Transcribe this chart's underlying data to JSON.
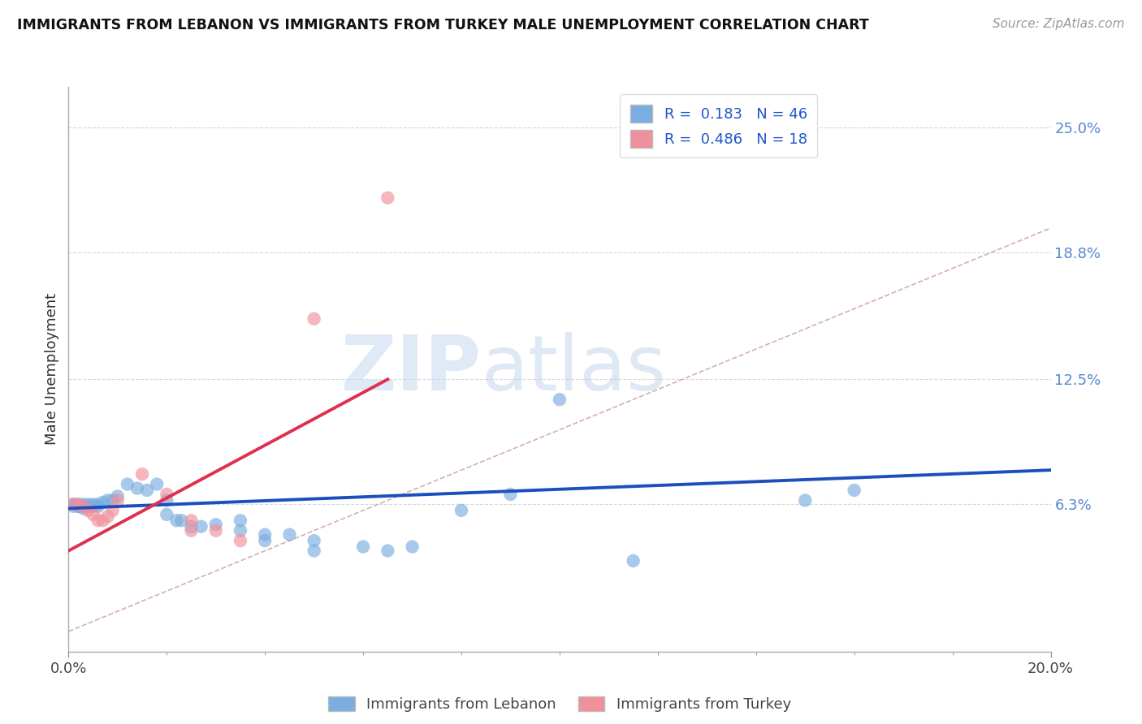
{
  "title": "IMMIGRANTS FROM LEBANON VS IMMIGRANTS FROM TURKEY MALE UNEMPLOYMENT CORRELATION CHART",
  "source": "Source: ZipAtlas.com",
  "ylabel": "Male Unemployment",
  "xlim": [
    0.0,
    0.2
  ],
  "ylim": [
    -0.01,
    0.27
  ],
  "yticks": [
    0.063,
    0.125,
    0.188,
    0.25
  ],
  "ytick_labels": [
    "6.3%",
    "12.5%",
    "18.8%",
    "25.0%"
  ],
  "xticks": [
    0.0,
    0.2
  ],
  "xtick_labels": [
    "0.0%",
    "20.0%"
  ],
  "legend1_entries": [
    {
      "label": "R =  0.183   N = 46",
      "color": "#8ab4e8"
    },
    {
      "label": "R =  0.486   N = 18",
      "color": "#f4a0b0"
    }
  ],
  "background_color": "#ffffff",
  "grid_color": "#d8d8d8",
  "watermark_zip": "ZIP",
  "watermark_atlas": "atlas",
  "lebanon_color": "#7aade0",
  "turkey_color": "#f0909c",
  "lebanon_line_color": "#1a4fbd",
  "turkey_line_color": "#e03050",
  "diagonal_color": "#d4b0b0",
  "lebanon_scatter": [
    [
      0.001,
      0.063
    ],
    [
      0.001,
      0.063
    ],
    [
      0.001,
      0.062
    ],
    [
      0.002,
      0.063
    ],
    [
      0.002,
      0.062
    ],
    [
      0.002,
      0.062
    ],
    [
      0.003,
      0.063
    ],
    [
      0.003,
      0.062
    ],
    [
      0.003,
      0.061
    ],
    [
      0.004,
      0.063
    ],
    [
      0.004,
      0.062
    ],
    [
      0.005,
      0.063
    ],
    [
      0.005,
      0.062
    ],
    [
      0.006,
      0.063
    ],
    [
      0.006,
      0.062
    ],
    [
      0.007,
      0.064
    ],
    [
      0.008,
      0.065
    ],
    [
      0.009,
      0.065
    ],
    [
      0.01,
      0.067
    ],
    [
      0.012,
      0.073
    ],
    [
      0.014,
      0.071
    ],
    [
      0.016,
      0.07
    ],
    [
      0.018,
      0.073
    ],
    [
      0.02,
      0.065
    ],
    [
      0.02,
      0.058
    ],
    [
      0.022,
      0.055
    ],
    [
      0.023,
      0.055
    ],
    [
      0.025,
      0.052
    ],
    [
      0.027,
      0.052
    ],
    [
      0.03,
      0.053
    ],
    [
      0.035,
      0.055
    ],
    [
      0.035,
      0.05
    ],
    [
      0.04,
      0.048
    ],
    [
      0.04,
      0.045
    ],
    [
      0.045,
      0.048
    ],
    [
      0.05,
      0.045
    ],
    [
      0.05,
      0.04
    ],
    [
      0.06,
      0.042
    ],
    [
      0.065,
      0.04
    ],
    [
      0.07,
      0.042
    ],
    [
      0.08,
      0.06
    ],
    [
      0.09,
      0.068
    ],
    [
      0.1,
      0.115
    ],
    [
      0.115,
      0.035
    ],
    [
      0.15,
      0.065
    ],
    [
      0.16,
      0.07
    ]
  ],
  "turkey_scatter": [
    [
      0.001,
      0.063
    ],
    [
      0.002,
      0.063
    ],
    [
      0.003,
      0.062
    ],
    [
      0.004,
      0.06
    ],
    [
      0.005,
      0.058
    ],
    [
      0.006,
      0.055
    ],
    [
      0.007,
      0.055
    ],
    [
      0.008,
      0.057
    ],
    [
      0.009,
      0.06
    ],
    [
      0.01,
      0.065
    ],
    [
      0.015,
      0.078
    ],
    [
      0.02,
      0.068
    ],
    [
      0.025,
      0.055
    ],
    [
      0.025,
      0.05
    ],
    [
      0.03,
      0.05
    ],
    [
      0.035,
      0.045
    ],
    [
      0.05,
      0.155
    ],
    [
      0.065,
      0.215
    ]
  ],
  "lebanon_line": [
    [
      0.0,
      0.061
    ],
    [
      0.2,
      0.08
    ]
  ],
  "turkey_line": [
    [
      0.0,
      0.04
    ],
    [
      0.065,
      0.125
    ]
  ],
  "diagonal_line": [
    [
      0.0,
      0.0
    ],
    [
      0.2,
      0.2
    ]
  ]
}
